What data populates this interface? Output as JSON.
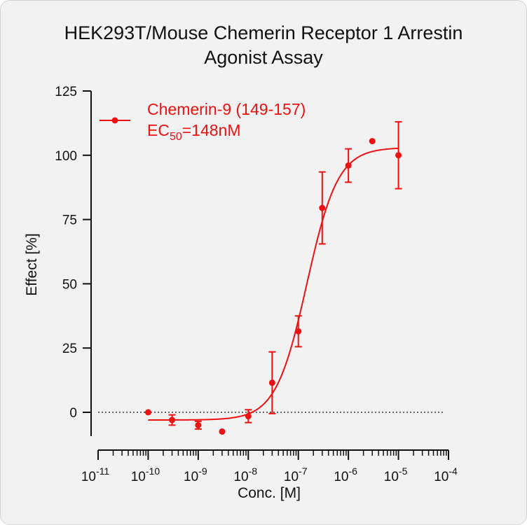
{
  "title": {
    "line1": "HEK293T/Mouse Chemerin Receptor 1 Arrestin",
    "line2": "Agonist Assay"
  },
  "chart_data": {
    "type": "scatter",
    "title": "HEK293T/Mouse Chemerin Receptor 1 Arrestin Agonist Assay",
    "xlabel": "Conc. [M]",
    "ylabel": "Effect  [%]",
    "x_scale": "log10",
    "xlim": [
      "1e-11",
      "1e-4"
    ],
    "ylim": [
      -10,
      125
    ],
    "x_tick_labels": [
      {
        "base": "10",
        "exp": "-11",
        "value": 1e-11
      },
      {
        "base": "10",
        "exp": "-10",
        "value": 1e-10
      },
      {
        "base": "10",
        "exp": "-9",
        "value": 1e-09
      },
      {
        "base": "10",
        "exp": "-8",
        "value": 1e-08
      },
      {
        "base": "10",
        "exp": "-7",
        "value": 1e-07
      },
      {
        "base": "10",
        "exp": "-6",
        "value": 1e-06
      },
      {
        "base": "10",
        "exp": "-5",
        "value": 1e-05
      },
      {
        "base": "10",
        "exp": "-4",
        "value": 0.0001
      }
    ],
    "y_ticks": [
      0,
      25,
      50,
      75,
      100,
      125
    ],
    "zero_reference_line": "dotted",
    "legend_position": "top-left",
    "series": [
      {
        "name": "Chemerin-9 (149-157)",
        "color": "#ee1111",
        "ec50_label": {
          "prefix": "EC",
          "sub": "50",
          "suffix": "=148nM"
        },
        "points": [
          {
            "x": 1e-10,
            "y": 0.0,
            "err": 0
          },
          {
            "x": 3e-10,
            "y": -3.0,
            "err": 2.0
          },
          {
            "x": 1e-09,
            "y": -5.0,
            "err": 1.5
          },
          {
            "x": 3e-09,
            "y": -7.5,
            "err": 0
          },
          {
            "x": 1e-08,
            "y": -1.5,
            "err": 2.5
          },
          {
            "x": 3e-08,
            "y": 11.5,
            "err": 12.0
          },
          {
            "x": 1e-07,
            "y": 31.5,
            "err": 6.0
          },
          {
            "x": 3e-07,
            "y": 79.5,
            "err": 14.0
          },
          {
            "x": 1e-06,
            "y": 96.0,
            "err": 6.5
          },
          {
            "x": 3e-06,
            "y": 105.5,
            "err": 0
          },
          {
            "x": 1e-05,
            "y": 100.0,
            "err": 13.0
          }
        ],
        "fit": {
          "bottom": -3.0,
          "top": 103.0,
          "ec50": 1.48e-07,
          "hill": 1.4
        }
      }
    ]
  }
}
